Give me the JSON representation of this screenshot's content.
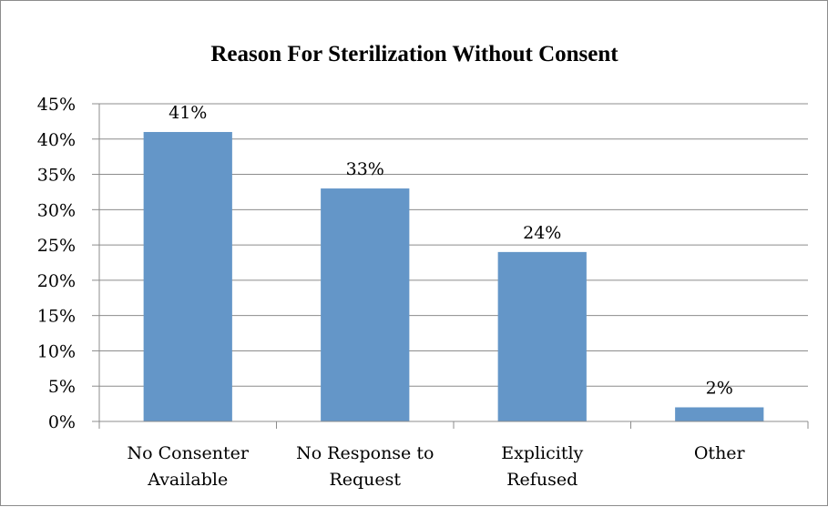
{
  "chart_data": {
    "type": "bar",
    "title": "Reason For Sterilization Without Consent",
    "xlabel": "",
    "ylabel": "",
    "categories": [
      [
        "No Consenter",
        "Available"
      ],
      [
        "No Response to",
        "Request"
      ],
      [
        "Explicitly",
        "Refused"
      ],
      [
        "Other"
      ]
    ],
    "values": [
      41,
      33,
      24,
      2
    ],
    "data_labels": [
      "41%",
      "33%",
      "24%",
      "2%"
    ],
    "ylim": [
      0,
      45
    ],
    "y_ticks": [
      0,
      5,
      10,
      15,
      20,
      25,
      30,
      35,
      40,
      45
    ],
    "y_tick_labels": [
      "0%",
      "5%",
      "10%",
      "15%",
      "20%",
      "25%",
      "30%",
      "35%",
      "40%",
      "45%"
    ],
    "grid": true,
    "legend": "none",
    "colors": {
      "bar": "#6496c8",
      "grid": "#8c8c8c",
      "axis": "#8c8c8c"
    }
  }
}
